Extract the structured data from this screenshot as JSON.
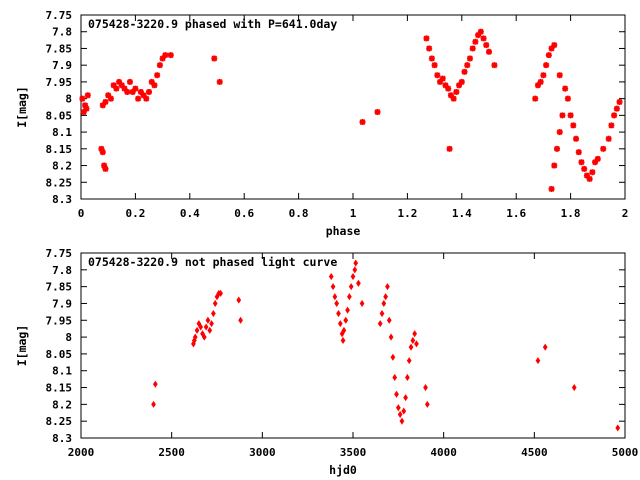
{
  "chart_data": [
    {
      "type": "scatter",
      "title": "075428-3220.9 phased with P=641.0day",
      "xlabel": "phase",
      "ylabel": "I[mag]",
      "xlim": [
        0,
        2
      ],
      "ylim": [
        7.75,
        8.3
      ],
      "y_inverted": true,
      "xticks": [
        0,
        0.2,
        0.4,
        0.6,
        0.8,
        1,
        1.2,
        1.4,
        1.6,
        1.8,
        2
      ],
      "yticks": [
        7.75,
        7.8,
        7.85,
        7.9,
        7.95,
        8,
        8.05,
        8.1,
        8.15,
        8.2,
        8.25,
        8.3
      ],
      "marker_color": "#ff0000",
      "marker": "star",
      "series": [
        {
          "points": [
            [
              0.005,
              8.0
            ],
            [
              0.01,
              8.04
            ],
            [
              0.015,
              8.02
            ],
            [
              0.02,
              8.03
            ],
            [
              0.025,
              7.99
            ],
            [
              0.075,
              8.15
            ],
            [
              0.08,
              8.16
            ],
            [
              0.085,
              8.2
            ],
            [
              0.09,
              8.21
            ],
            [
              0.08,
              8.02
            ],
            [
              0.09,
              8.01
            ],
            [
              0.1,
              7.99
            ],
            [
              0.11,
              8.0
            ],
            [
              0.12,
              7.96
            ],
            [
              0.13,
              7.97
            ],
            [
              0.14,
              7.95
            ],
            [
              0.15,
              7.96
            ],
            [
              0.16,
              7.97
            ],
            [
              0.17,
              7.98
            ],
            [
              0.18,
              7.95
            ],
            [
              0.19,
              7.98
            ],
            [
              0.2,
              7.97
            ],
            [
              0.21,
              8.0
            ],
            [
              0.22,
              7.98
            ],
            [
              0.23,
              7.99
            ],
            [
              0.24,
              8.0
            ],
            [
              0.25,
              7.98
            ],
            [
              0.26,
              7.95
            ],
            [
              0.27,
              7.96
            ],
            [
              0.28,
              7.93
            ],
            [
              0.29,
              7.9
            ],
            [
              0.3,
              7.88
            ],
            [
              0.31,
              7.87
            ],
            [
              0.33,
              7.87
            ],
            [
              0.49,
              7.88
            ],
            [
              0.51,
              7.95
            ],
            [
              1.035,
              8.07
            ],
            [
              1.09,
              8.04
            ],
            [
              1.27,
              7.82
            ],
            [
              1.28,
              7.85
            ],
            [
              1.29,
              7.88
            ],
            [
              1.3,
              7.9
            ],
            [
              1.31,
              7.93
            ],
            [
              1.32,
              7.95
            ],
            [
              1.33,
              7.94
            ],
            [
              1.34,
              7.96
            ],
            [
              1.35,
              7.97
            ],
            [
              1.36,
              7.99
            ],
            [
              1.37,
              8.0
            ],
            [
              1.38,
              7.98
            ],
            [
              1.39,
              7.96
            ],
            [
              1.4,
              7.95
            ],
            [
              1.41,
              7.92
            ],
            [
              1.42,
              7.9
            ],
            [
              1.43,
              7.88
            ],
            [
              1.44,
              7.85
            ],
            [
              1.45,
              7.83
            ],
            [
              1.46,
              7.81
            ],
            [
              1.47,
              7.8
            ],
            [
              1.48,
              7.82
            ],
            [
              1.49,
              7.84
            ],
            [
              1.5,
              7.86
            ],
            [
              1.52,
              7.9
            ],
            [
              1.355,
              8.15
            ],
            [
              1.67,
              8.0
            ],
            [
              1.68,
              7.96
            ],
            [
              1.69,
              7.95
            ],
            [
              1.7,
              7.93
            ],
            [
              1.71,
              7.9
            ],
            [
              1.72,
              7.87
            ],
            [
              1.73,
              7.85
            ],
            [
              1.74,
              7.84
            ],
            [
              1.73,
              8.27
            ],
            [
              1.74,
              8.2
            ],
            [
              1.75,
              8.15
            ],
            [
              1.76,
              8.1
            ],
            [
              1.77,
              8.05
            ],
            [
              1.76,
              7.93
            ],
            [
              1.78,
              7.97
            ],
            [
              1.79,
              8.0
            ],
            [
              1.8,
              8.05
            ],
            [
              1.81,
              8.08
            ],
            [
              1.82,
              8.12
            ],
            [
              1.83,
              8.16
            ],
            [
              1.84,
              8.19
            ],
            [
              1.85,
              8.21
            ],
            [
              1.86,
              8.23
            ],
            [
              1.87,
              8.24
            ],
            [
              1.88,
              8.22
            ],
            [
              1.89,
              8.19
            ],
            [
              1.9,
              8.18
            ],
            [
              1.92,
              8.15
            ],
            [
              1.94,
              8.12
            ],
            [
              1.95,
              8.08
            ],
            [
              1.96,
              8.05
            ],
            [
              1.97,
              8.03
            ],
            [
              1.98,
              8.01
            ]
          ]
        }
      ]
    },
    {
      "type": "scatter",
      "title": "075428-3220.9 not phased light curve",
      "xlabel": "hjd0",
      "ylabel": "I[mag]",
      "xlim": [
        2000,
        5000
      ],
      "ylim": [
        7.75,
        8.3
      ],
      "y_inverted": true,
      "xticks": [
        2000,
        2500,
        3000,
        3500,
        4000,
        4500,
        5000
      ],
      "yticks": [
        7.75,
        7.8,
        7.85,
        7.9,
        7.95,
        8,
        8.05,
        8.1,
        8.15,
        8.2,
        8.25,
        8.3
      ],
      "marker_color": "#ff0000",
      "marker": "diamond",
      "series": [
        {
          "points": [
            [
              2400,
              8.2
            ],
            [
              2410,
              8.14
            ],
            [
              2620,
              8.02
            ],
            [
              2625,
              8.01
            ],
            [
              2630,
              8.0
            ],
            [
              2640,
              7.98
            ],
            [
              2650,
              7.96
            ],
            [
              2660,
              7.97
            ],
            [
              2670,
              7.99
            ],
            [
              2680,
              8.0
            ],
            [
              2690,
              7.97
            ],
            [
              2700,
              7.95
            ],
            [
              2710,
              7.98
            ],
            [
              2720,
              7.96
            ],
            [
              2730,
              7.93
            ],
            [
              2740,
              7.9
            ],
            [
              2750,
              7.88
            ],
            [
              2760,
              7.87
            ],
            [
              2770,
              7.87
            ],
            [
              2870,
              7.89
            ],
            [
              2880,
              7.95
            ],
            [
              3380,
              7.82
            ],
            [
              3390,
              7.85
            ],
            [
              3400,
              7.88
            ],
            [
              3410,
              7.9
            ],
            [
              3420,
              7.93
            ],
            [
              3430,
              7.96
            ],
            [
              3440,
              7.99
            ],
            [
              3445,
              8.01
            ],
            [
              3450,
              7.98
            ],
            [
              3460,
              7.95
            ],
            [
              3470,
              7.92
            ],
            [
              3480,
              7.88
            ],
            [
              3490,
              7.85
            ],
            [
              3500,
              7.82
            ],
            [
              3510,
              7.8
            ],
            [
              3515,
              7.78
            ],
            [
              3530,
              7.84
            ],
            [
              3550,
              7.9
            ],
            [
              3650,
              7.96
            ],
            [
              3660,
              7.93
            ],
            [
              3670,
              7.9
            ],
            [
              3680,
              7.88
            ],
            [
              3690,
              7.85
            ],
            [
              3700,
              7.95
            ],
            [
              3710,
              8.0
            ],
            [
              3720,
              8.06
            ],
            [
              3730,
              8.12
            ],
            [
              3740,
              8.17
            ],
            [
              3750,
              8.21
            ],
            [
              3760,
              8.23
            ],
            [
              3770,
              8.25
            ],
            [
              3780,
              8.22
            ],
            [
              3790,
              8.18
            ],
            [
              3800,
              8.12
            ],
            [
              3810,
              8.07
            ],
            [
              3820,
              8.03
            ],
            [
              3830,
              8.01
            ],
            [
              3840,
              7.99
            ],
            [
              3850,
              8.02
            ],
            [
              3900,
              8.15
            ],
            [
              3910,
              8.2
            ],
            [
              4520,
              8.07
            ],
            [
              4560,
              8.03
            ],
            [
              4720,
              8.15
            ],
            [
              4960,
              8.27
            ]
          ]
        }
      ]
    }
  ]
}
